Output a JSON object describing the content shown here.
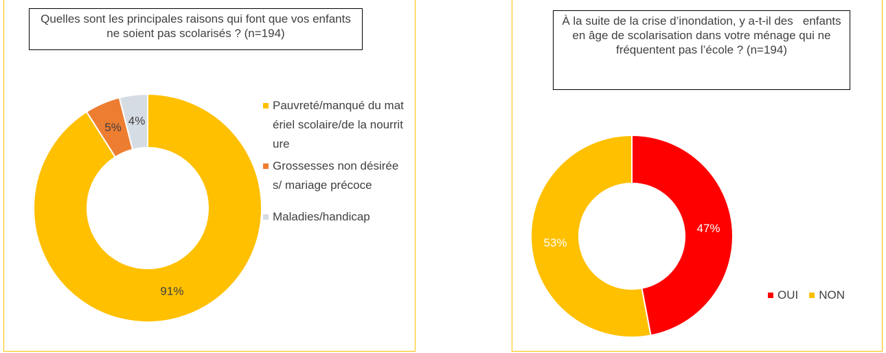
{
  "chart_data": [
    {
      "type": "donut",
      "title": "Quelles sont les principales raisons qui font que vos enfants ne soient pas scolarisés ? (n=194)",
      "categories": [
        "Pauvreté/manqué du matériel scolaire/de la nourriture",
        "Grossesses non désirées/ mariage précoce",
        "Maladies/handicap"
      ],
      "values": [
        91,
        5,
        4
      ],
      "value_labels": [
        "91%",
        "5%",
        "4%"
      ],
      "colors": [
        "#FFC000",
        "#ED7D31",
        "#D6DCE4"
      ],
      "label_color": "#404040",
      "legend": "right"
    },
    {
      "type": "donut",
      "title": "À la suite de la crise d’inondation, y a-t-il des   enfants en âge de scolarisation dans votre ménage qui ne fréquentent pas l’école ? (n=194)",
      "categories": [
        "OUI",
        "NON"
      ],
      "values": [
        47,
        53
      ],
      "value_labels": [
        "47%",
        "53%"
      ],
      "colors": [
        "#FF0000",
        "#FFC000"
      ],
      "label_color": "#FFFFFF",
      "legend": "right-bottom"
    }
  ]
}
